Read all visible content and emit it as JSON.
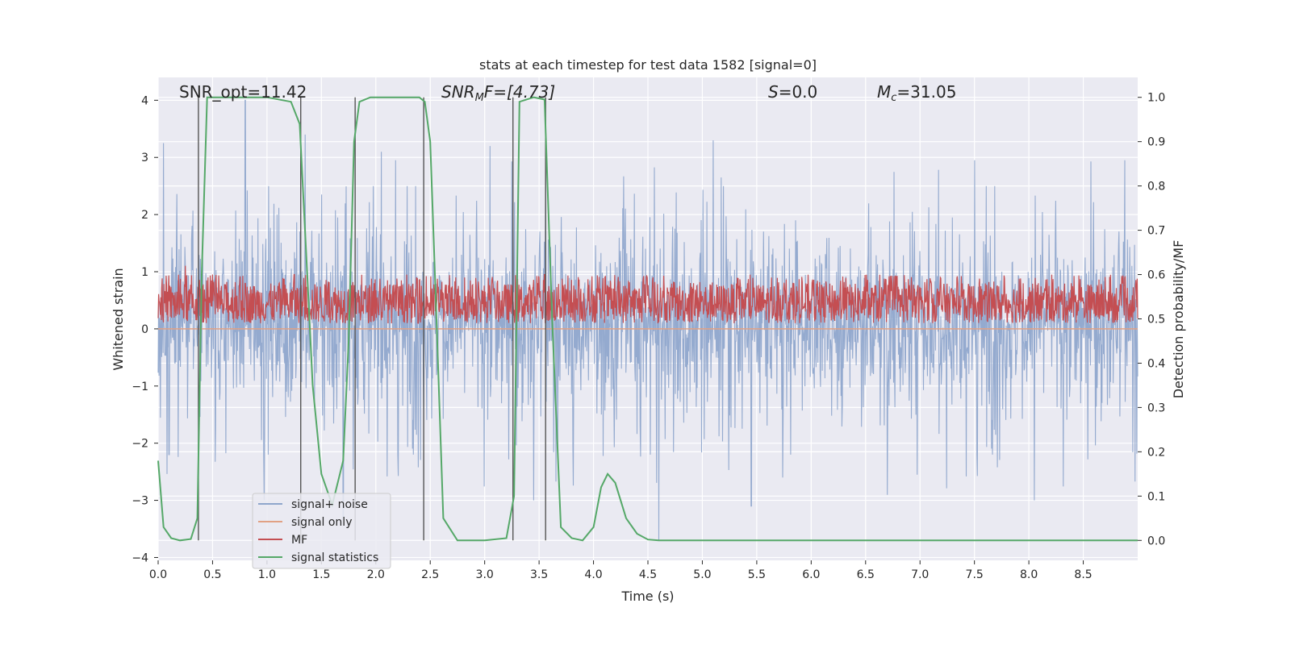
{
  "chart_data": {
    "type": "line",
    "title": "stats at each timestep for test data 1582 [signal=0]",
    "xlabel": "Time (s)",
    "ylabel": "Whitened strain",
    "y2label": "Detection probability/MF",
    "xlim": [
      0,
      9.0
    ],
    "ylim": [
      -4.05,
      4.4
    ],
    "y2lim": [
      -0.045,
      1.045
    ],
    "xticks": [
      "0.0",
      "0.5",
      "1.0",
      "1.5",
      "2.0",
      "2.5",
      "3.0",
      "3.5",
      "4.0",
      "4.5",
      "5.0",
      "5.5",
      "6.0",
      "6.5",
      "7.0",
      "7.5",
      "8.0",
      "8.5"
    ],
    "yticks": [
      "−4",
      "−3",
      "−2",
      "−1",
      "0",
      "1",
      "2",
      "3",
      "4"
    ],
    "y2ticks": [
      "0.0",
      "0.1",
      "0.2",
      "0.3",
      "0.4",
      "0.5",
      "0.6",
      "0.7",
      "0.8",
      "0.9",
      "1.0"
    ],
    "grid": true,
    "legend_placement": "lower-left",
    "annotations": {
      "snr_opt": "SNR_opt=11.42",
      "snr_mf_base": "SNR",
      "snr_mf_sub": "M",
      "snr_mf_rest": "F=[4.73]",
      "s_label": "S",
      "s_rest": "=0.0",
      "mc_base": "M",
      "mc_sub": "c",
      "mc_rest": "=31.05"
    },
    "series": [
      {
        "name": "signal+ noise",
        "color": "#8fa6cc",
        "style": "noise",
        "amplitude_typical": [
          -1.4,
          1.7
        ],
        "spike_extremes": [
          [
            0.05,
            3.25
          ],
          [
            0.8,
            4.0
          ],
          [
            1.35,
            3.4
          ],
          [
            2.05,
            3.1
          ],
          [
            3.05,
            3.2
          ],
          [
            6.7,
            3.5
          ],
          [
            5.1,
            3.3
          ],
          [
            1.7,
            -3.3
          ],
          [
            3.45,
            -3.0
          ],
          [
            4.6,
            -3.7
          ],
          [
            5.45,
            -3.1
          ],
          [
            0.1,
            -2.2
          ],
          [
            8.05,
            -3.0
          ]
        ]
      },
      {
        "name": "signal only",
        "color": "#e1a184",
        "style": "flat",
        "value": 0.0
      },
      {
        "name": "MF",
        "color": "#c44e52",
        "style": "noise-secondary",
        "axis": "right",
        "band": [
          0.49,
          0.58
        ],
        "peaks": [
          [
            0.25,
            0.62
          ],
          [
            0.5,
            0.6
          ],
          [
            0.8,
            0.58
          ],
          [
            1.25,
            0.6
          ],
          [
            3.55,
            0.6
          ],
          [
            5.95,
            0.58
          ]
        ]
      },
      {
        "name": "signal statistics",
        "color": "#55a868",
        "style": "line",
        "axis": "right",
        "x": [
          0.0,
          0.05,
          0.12,
          0.2,
          0.3,
          0.36,
          0.4,
          0.45,
          0.5,
          0.6,
          1.0,
          1.22,
          1.3,
          1.37,
          1.42,
          1.5,
          1.6,
          1.7,
          1.75,
          1.8,
          1.85,
          1.95,
          2.4,
          2.45,
          2.5,
          2.55,
          2.62,
          2.75,
          3.0,
          3.2,
          3.27,
          3.32,
          3.45,
          3.55,
          3.62,
          3.7,
          3.8,
          3.9,
          4.0,
          4.07,
          4.13,
          4.2,
          4.3,
          4.4,
          4.5,
          4.6,
          5.0,
          9.0
        ],
        "y": [
          0.18,
          0.03,
          0.005,
          0.0,
          0.003,
          0.05,
          0.6,
          1.0,
          1.0,
          1.0,
          1.0,
          0.99,
          0.94,
          0.6,
          0.35,
          0.15,
          0.08,
          0.18,
          0.45,
          0.9,
          0.99,
          1.0,
          1.0,
          0.99,
          0.9,
          0.55,
          0.05,
          0.0,
          0.0,
          0.005,
          0.1,
          0.99,
          1.0,
          0.995,
          0.5,
          0.03,
          0.005,
          0.0,
          0.03,
          0.12,
          0.15,
          0.13,
          0.05,
          0.015,
          0.002,
          0.0,
          0.0,
          0.0
        ]
      }
    ],
    "vertical_markers": {
      "color": "#555555",
      "x": [
        0.37,
        1.31,
        1.81,
        2.44,
        3.26,
        3.56
      ]
    }
  }
}
